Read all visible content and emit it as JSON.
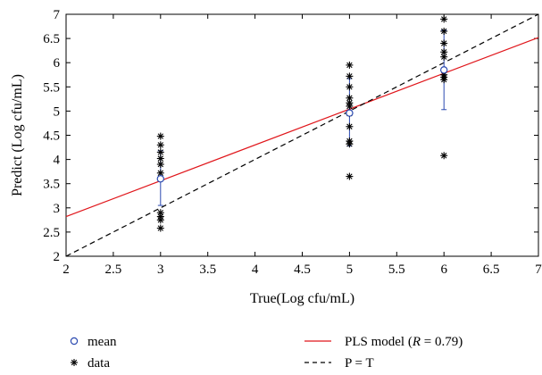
{
  "chart_data": {
    "type": "scatter",
    "title": "",
    "xlabel": "True(Log cfu/mL)",
    "ylabel": "Predict (Log cfu/mL)",
    "xlim": [
      2,
      7
    ],
    "ylim": [
      2,
      7
    ],
    "xticks": [
      "2",
      "2.5",
      "3",
      "3.5",
      "4",
      "4.5",
      "5",
      "5.5",
      "6",
      "6.5",
      "7"
    ],
    "yticks": [
      "2",
      "2.5",
      "3",
      "3.5",
      "4",
      "4.5",
      "5",
      "5.5",
      "6",
      "6.5",
      "7"
    ],
    "grid": false,
    "legend_placement": "below",
    "series": [
      {
        "name": "data",
        "marker": "asterisk",
        "color": "#000000",
        "points": [
          [
            3,
            4.48
          ],
          [
            3,
            4.3
          ],
          [
            3,
            4.15
          ],
          [
            3,
            4.02
          ],
          [
            3,
            3.9
          ],
          [
            3,
            3.72
          ],
          [
            3,
            2.9
          ],
          [
            3,
            2.82
          ],
          [
            3,
            2.75
          ],
          [
            3,
            2.58
          ],
          [
            5,
            5.95
          ],
          [
            5,
            5.72
          ],
          [
            5,
            5.5
          ],
          [
            5,
            5.27
          ],
          [
            5,
            5.17
          ],
          [
            5,
            5.1
          ],
          [
            5,
            4.95
          ],
          [
            5,
            4.68
          ],
          [
            5,
            4.38
          ],
          [
            5,
            4.32
          ],
          [
            5,
            3.65
          ],
          [
            6,
            6.9
          ],
          [
            6,
            6.65
          ],
          [
            6,
            6.4
          ],
          [
            6,
            6.22
          ],
          [
            6,
            6.12
          ],
          [
            6,
            5.75
          ],
          [
            6,
            5.7
          ],
          [
            6,
            5.65
          ],
          [
            6,
            4.08
          ]
        ]
      },
      {
        "name": "mean",
        "marker": "circle",
        "color": "#2b4ab0",
        "points": [
          [
            3,
            3.6
          ],
          [
            5,
            4.96
          ],
          [
            6,
            5.85
          ]
        ],
        "error": [
          [
            3.05,
            4.18
          ],
          [
            4.28,
            5.67
          ],
          [
            5.03,
            6.67
          ]
        ]
      },
      {
        "name": "PLS model (R = 0.79)",
        "line": "solid",
        "color": "#e0161b",
        "points": [
          [
            2,
            2.82
          ],
          [
            7,
            6.52
          ]
        ]
      },
      {
        "name": "P = T",
        "line": "dashed",
        "color": "#000000",
        "points": [
          [
            2,
            2
          ],
          [
            7,
            7
          ]
        ]
      }
    ],
    "legend": [
      {
        "label": "mean",
        "marker": "circle"
      },
      {
        "label": "data",
        "marker": "asterisk"
      },
      {
        "label": "PLS model (",
        "label_italic": "R",
        "label_rest": " = 0.79)",
        "marker": "solid-line"
      },
      {
        "label": "P = T",
        "marker": "dashed-line"
      }
    ]
  }
}
